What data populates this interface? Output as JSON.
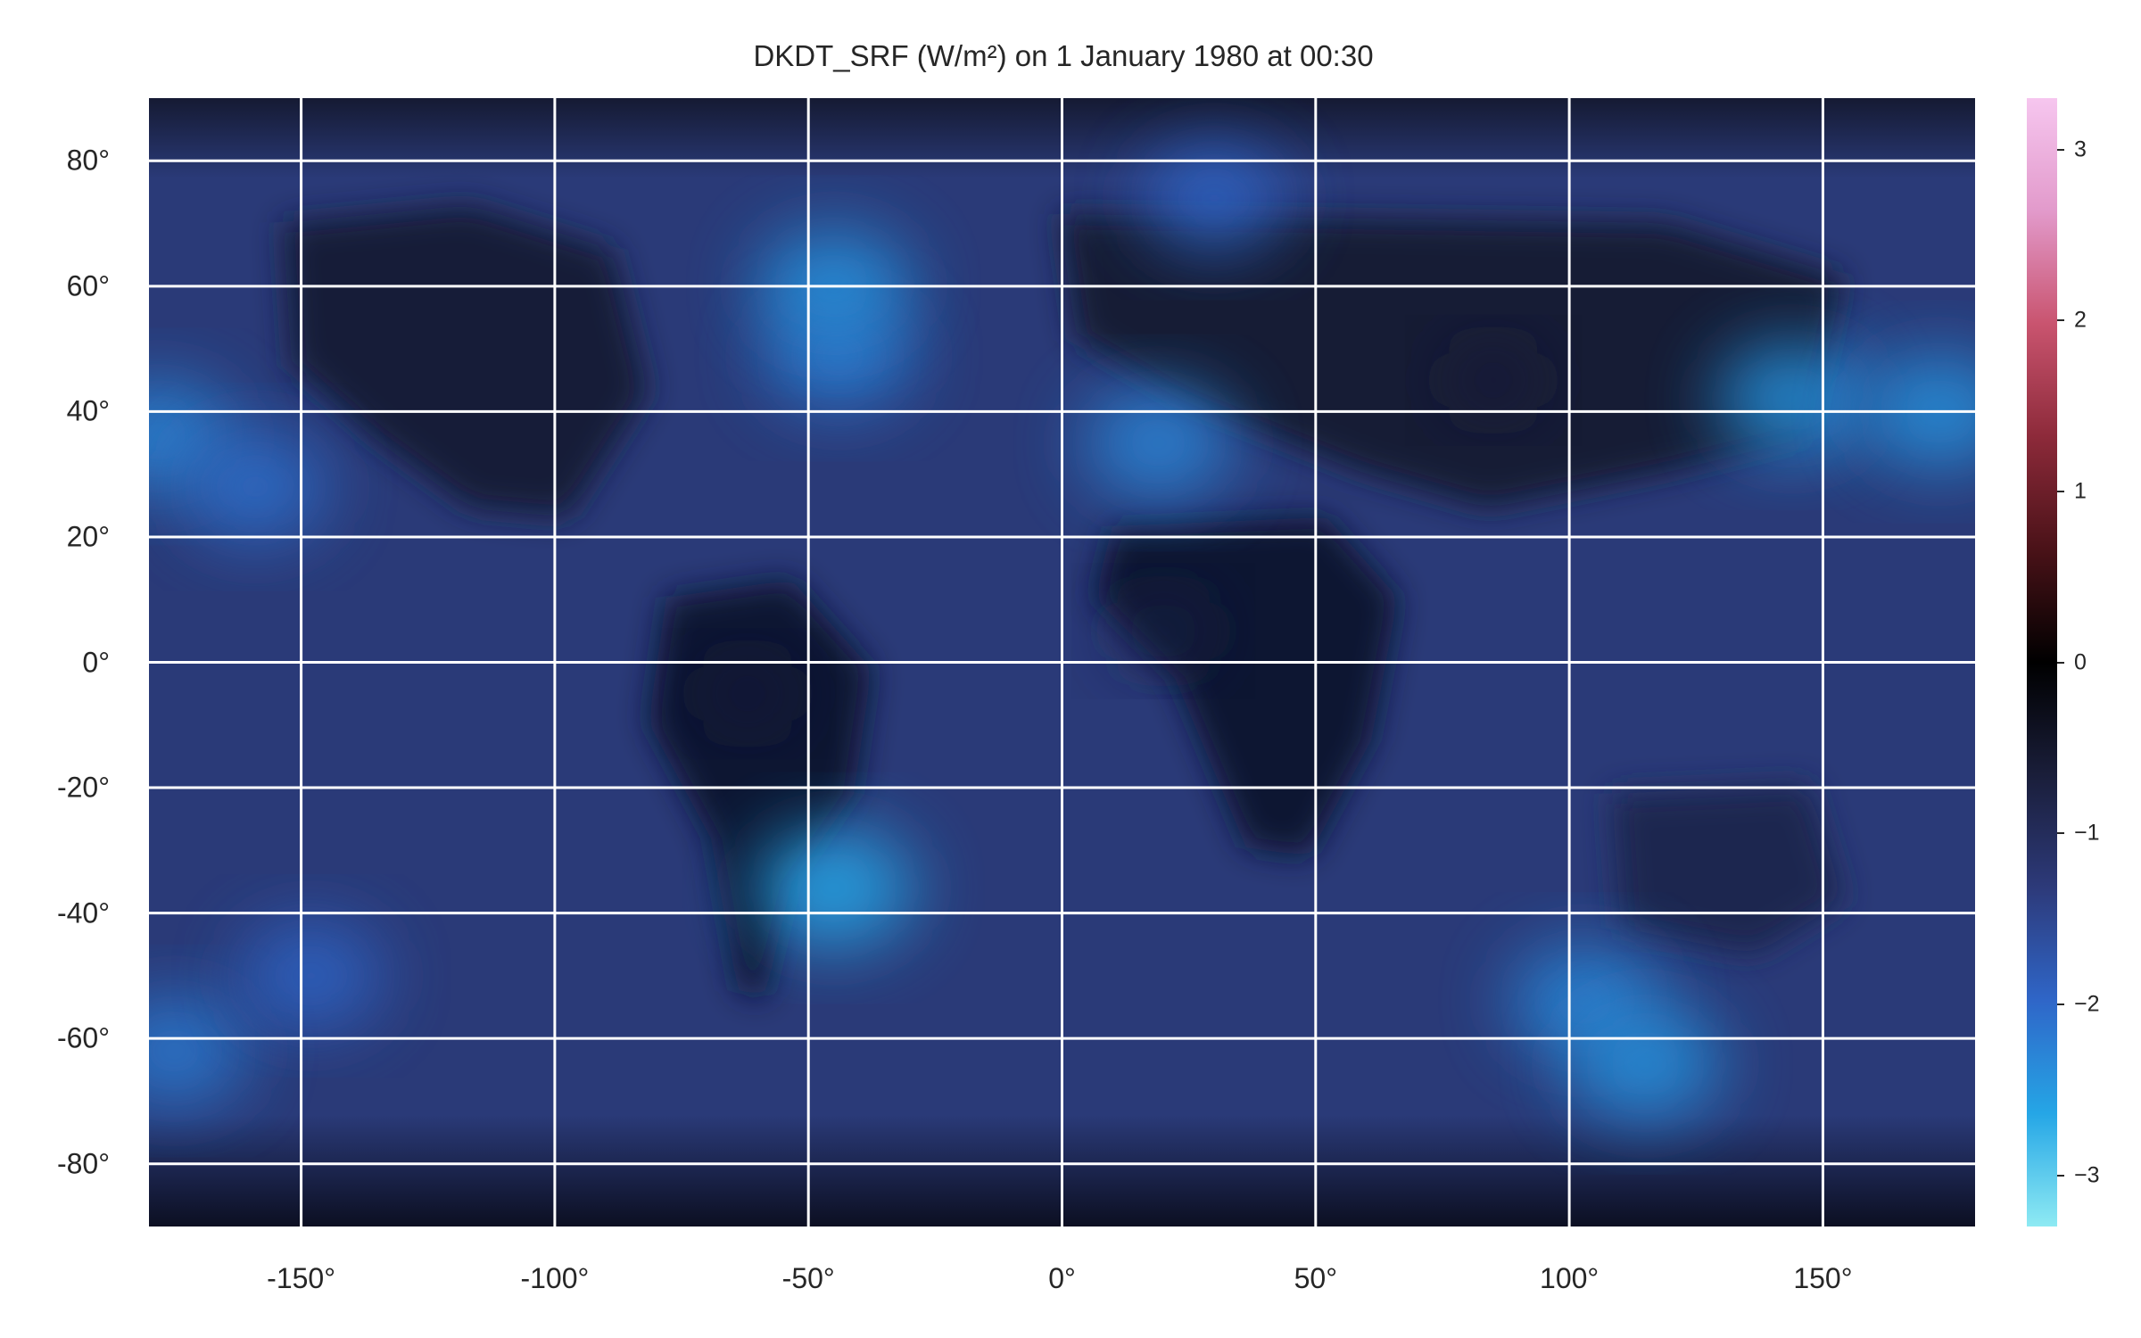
{
  "title": "DKDT_SRF (W/m²) on 1 January 1980 at 00:30",
  "chart_data": {
    "type": "heatmap",
    "projection": "plate carree",
    "variable": "DKDT_SRF",
    "units": "W/m²",
    "xlim": [
      -180,
      180
    ],
    "ylim": [
      -90,
      90
    ],
    "grid": true,
    "x_ticks": [
      {
        "value": -150,
        "label": "-150°"
      },
      {
        "value": -100,
        "label": "-100°"
      },
      {
        "value": -50,
        "label": "-50°"
      },
      {
        "value": 0,
        "label": "0°"
      },
      {
        "value": 50,
        "label": "50°"
      },
      {
        "value": 100,
        "label": "100°"
      },
      {
        "value": 150,
        "label": "150°"
      }
    ],
    "y_ticks": [
      {
        "value": 80,
        "label": "80°"
      },
      {
        "value": 60,
        "label": "60°"
      },
      {
        "value": 40,
        "label": "40°"
      },
      {
        "value": 20,
        "label": "20°"
      },
      {
        "value": 0,
        "label": "0°"
      },
      {
        "value": -20,
        "label": "-20°"
      },
      {
        "value": -40,
        "label": "-40°"
      },
      {
        "value": -60,
        "label": "-60°"
      },
      {
        "value": -80,
        "label": "-80°"
      }
    ],
    "colorbar": {
      "range": [
        -3.3,
        3.3
      ],
      "ticks": [
        {
          "value": 3,
          "label": "3"
        },
        {
          "value": 2,
          "label": "2"
        },
        {
          "value": 1,
          "label": "1"
        },
        {
          "value": 0,
          "label": "0"
        },
        {
          "value": -1,
          "label": "−1"
        },
        {
          "value": -2,
          "label": "−2"
        },
        {
          "value": -3,
          "label": "−3"
        }
      ],
      "colors": {
        "high": "#f6c6ef",
        "mid_positive": "#8d2a3a",
        "zero": "#000000",
        "mid_negative": "#2d3a7a",
        "low_negative": "#25a6e6",
        "low": "#8eeaf3"
      }
    },
    "features": [
      {
        "name": "north-pacific-low-west",
        "lon": -178,
        "lat": 36,
        "value": -2.3
      },
      {
        "name": "north-pacific-eddy",
        "lon": -159,
        "lat": 28,
        "value": -2.1
      },
      {
        "name": "north-atlantic-low",
        "lon": -44,
        "lat": 49,
        "value": -2.2
      },
      {
        "name": "greenland-tip",
        "lon": -45,
        "lat": 60,
        "value": -2.4
      },
      {
        "name": "arctic-barents",
        "lon": 30,
        "lat": 74,
        "value": -2.0
      },
      {
        "name": "mediterranean-low",
        "lon": 19,
        "lat": 35,
        "value": -2.3
      },
      {
        "name": "japan-kuril-low",
        "lon": 144,
        "lat": 42,
        "value": -2.4
      },
      {
        "name": "pacific-eddy-east",
        "lon": 173,
        "lat": 40,
        "value": -2.4
      },
      {
        "name": "south-atlantic-cyclone",
        "lon": -45,
        "lat": -36,
        "value": -2.6
      },
      {
        "name": "southern-indian-storm",
        "lon": 103,
        "lat": -54,
        "value": -2.3
      },
      {
        "name": "southern-arc",
        "lon": 115,
        "lat": -64,
        "value": -2.4
      },
      {
        "name": "southern-ocean-west",
        "lon": -175,
        "lat": -62,
        "value": -2.2
      },
      {
        "name": "south-pacific-patch",
        "lon": -148,
        "lat": -50,
        "value": -2.0
      },
      {
        "name": "south-america-land",
        "lon": -62,
        "lat": -5,
        "value": -0.5
      },
      {
        "name": "africa-land",
        "lon": 20,
        "lat": 5,
        "value": -0.6
      },
      {
        "name": "asia-land",
        "lon": 85,
        "lat": 45,
        "value": -0.5
      }
    ]
  }
}
